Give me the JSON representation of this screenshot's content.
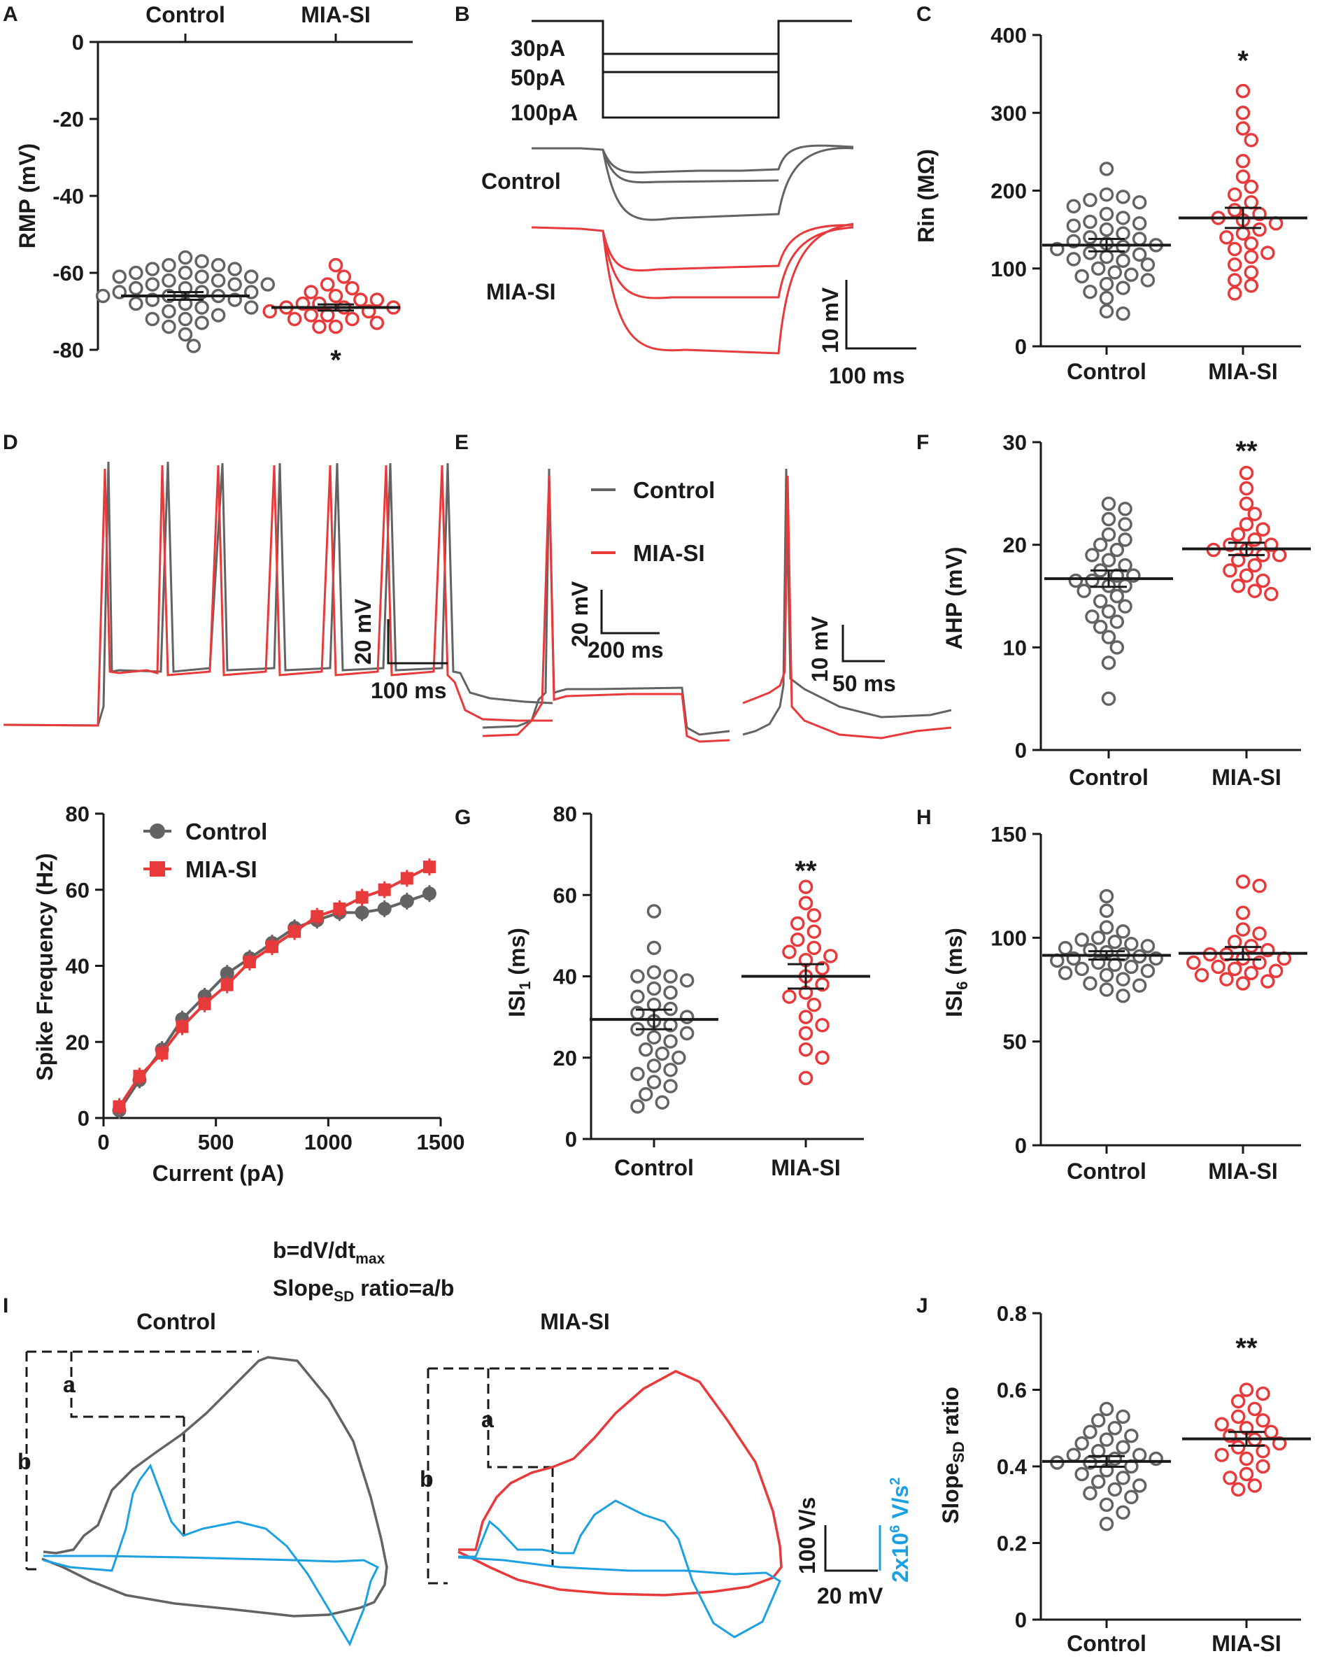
{
  "colors": {
    "control": "#636363",
    "mia": "#e8393b",
    "blue": "#1ba1e2",
    "black": "#1a1a1a"
  },
  "groups": {
    "control": "Control",
    "mia": "MIA-SI"
  },
  "panels": {
    "A": {
      "label": "A",
      "ylabel": "RMP (mV)",
      "ticks": [
        "0",
        "-20",
        "-40",
        "-60",
        "-80"
      ],
      "star": "*"
    },
    "B": {
      "label": "B",
      "steps": [
        "30pA",
        "50pA",
        "100pA"
      ],
      "trace1": "Control",
      "trace2": "MIA-SI",
      "scale_v": "10 mV",
      "scale_t": "100 ms"
    },
    "C": {
      "label": "C",
      "ylabel": "Rin (MΩ)",
      "ticks": [
        "400",
        "300",
        "200",
        "100",
        "0"
      ],
      "star": "*"
    },
    "D": {
      "label": "D",
      "scale_v": "20 mV",
      "scale_t": "100 ms"
    },
    "E": {
      "label": "E",
      "legend1": "Control",
      "legend2": "MIA-SI",
      "scale1_v": "20 mV",
      "scale1_t": "200 ms",
      "scale2_v": "10 mV",
      "scale2_t": "50 ms"
    },
    "F": {
      "label": "F",
      "ylabel": "AHP (mV)",
      "ticks": [
        "30",
        "20",
        "10",
        "0"
      ],
      "star": "**"
    },
    "FI": {
      "xlabel": "Current (pA)",
      "ylabel": "Spike Frequency (Hz)",
      "yticks": [
        "80",
        "60",
        "40",
        "20",
        "0"
      ],
      "xticks": [
        "0",
        "500",
        "1000",
        "1500"
      ],
      "legend1": "Control",
      "legend2": "MIA-SI"
    },
    "G": {
      "label": "G",
      "ylabel_main": "ISI",
      "ylabel_sub": "1",
      "ylabel_unit": " (ms)",
      "ticks": [
        "80",
        "60",
        "40",
        "20",
        "0"
      ],
      "star": "**"
    },
    "H": {
      "label": "H",
      "ylabel_main": "ISI",
      "ylabel_sub": "6",
      "ylabel_unit": " (ms)",
      "ticks": [
        "150",
        "100",
        "50",
        "0"
      ]
    },
    "I": {
      "label": "I",
      "eq1_main": "b=dV/dt",
      "eq1_sub": "max",
      "eq2_main": "Slope",
      "eq2_sub": "SD",
      "eq2_rest": " ratio=a/b",
      "title1": "Control",
      "title2": "MIA-SI",
      "mark_a": "a",
      "mark_b": "b",
      "scale_v": "100 V/s",
      "scale_t": "20 mV",
      "scale_blue": "2x10",
      "scale_blue_sup": "6",
      "scale_blue_unit": " V/s",
      "scale_blue_sup2": "2"
    },
    "J": {
      "label": "J",
      "ylabel_main": "Slope",
      "ylabel_sub": "SD",
      "ylabel_unit": " ratio",
      "ticks": [
        "0.8",
        "0.6",
        "0.4",
        "0.2",
        "0"
      ],
      "star": "**"
    }
  },
  "chart_data": [
    {
      "id": "A",
      "type": "scatter",
      "title": "",
      "ylabel": "RMP (mV)",
      "ylim": [
        -80,
        0
      ],
      "series": [
        {
          "name": "Control",
          "mean": -66,
          "sem": 1,
          "values": [
            -56,
            -57,
            -58,
            -58,
            -59,
            -59,
            -60,
            -60,
            -61,
            -61,
            -61,
            -62,
            -62,
            -63,
            -63,
            -63,
            -64,
            -64,
            -65,
            -65,
            -65,
            -66,
            -66,
            -66,
            -67,
            -67,
            -68,
            -68,
            -69,
            -69,
            -70,
            -71,
            -72,
            -72,
            -73,
            -74,
            -76,
            -79
          ]
        },
        {
          "name": "MIA-SI",
          "mean": -69,
          "sem": 0.8,
          "values": [
            -58,
            -61,
            -63,
            -64,
            -65,
            -66,
            -67,
            -67,
            -68,
            -68,
            -69,
            -69,
            -69,
            -70,
            -70,
            -71,
            -71,
            -72,
            -72,
            -73,
            -74,
            -74
          ]
        }
      ]
    },
    {
      "id": "C",
      "type": "scatter",
      "title": "",
      "ylabel": "Rin (MΩ)",
      "ylim": [
        0,
        400
      ],
      "series": [
        {
          "name": "Control",
          "mean": 130,
          "sem": 8,
          "values": [
            228,
            195,
            192,
            188,
            185,
            180,
            170,
            165,
            160,
            158,
            155,
            150,
            145,
            140,
            138,
            135,
            132,
            130,
            128,
            125,
            120,
            118,
            115,
            112,
            110,
            105,
            100,
            95,
            92,
            90,
            85,
            80,
            75,
            70,
            62,
            45,
            42
          ]
        },
        {
          "name": "MIA-SI",
          "mean": 165,
          "sem": 13,
          "values": [
            328,
            300,
            280,
            265,
            238,
            218,
            205,
            195,
            185,
            175,
            170,
            165,
            162,
            158,
            150,
            145,
            140,
            132,
            125,
            120,
            115,
            105,
            95,
            85,
            78,
            68
          ]
        }
      ]
    },
    {
      "id": "F",
      "type": "scatter",
      "title": "",
      "ylabel": "AHP (mV)",
      "ylim": [
        0,
        30
      ],
      "series": [
        {
          "name": "Control",
          "mean": 16.7,
          "sem": 0.8,
          "values": [
            24,
            23.5,
            22.5,
            22,
            21,
            20.5,
            20,
            19.5,
            19,
            18.5,
            18,
            17.5,
            17,
            17,
            16.5,
            16.5,
            16,
            16,
            15.5,
            15,
            14.5,
            14,
            13.5,
            13,
            12.5,
            12,
            11,
            10,
            8.5,
            5
          ]
        },
        {
          "name": "MIA-SI",
          "mean": 19.6,
          "sem": 0.6,
          "values": [
            27,
            25.5,
            24,
            23,
            22,
            21.5,
            21,
            20.5,
            20,
            20,
            19.5,
            19.5,
            19,
            19,
            18.5,
            18,
            17.5,
            17,
            16.5,
            16,
            15.5,
            15.2
          ]
        }
      ]
    },
    {
      "id": "FI",
      "type": "line",
      "title": "",
      "xlabel": "Current (pA)",
      "ylabel": "Spike Frequency (Hz)",
      "xlim": [
        0,
        1500
      ],
      "ylim": [
        0,
        80
      ],
      "x": [
        70,
        160,
        260,
        350,
        450,
        550,
        650,
        750,
        850,
        950,
        1050,
        1150,
        1250,
        1350,
        1450
      ],
      "series": [
        {
          "name": "Control",
          "values": [
            2,
            10,
            18,
            26,
            32,
            38,
            42,
            46,
            50,
            52,
            54,
            54,
            55,
            57,
            59
          ]
        },
        {
          "name": "MIA-SI",
          "values": [
            3,
            11,
            17,
            24,
            30,
            35,
            41,
            45,
            49,
            53,
            55,
            58,
            60,
            63,
            66
          ]
        }
      ]
    },
    {
      "id": "G",
      "type": "scatter",
      "title": "",
      "ylabel": "ISI1 (ms)",
      "ylim": [
        0,
        80
      ],
      "series": [
        {
          "name": "Control",
          "mean": 29.4,
          "sem": 2.4,
          "values": [
            56,
            47,
            41,
            40,
            40,
            39,
            37,
            36,
            35,
            33,
            32,
            31,
            30,
            29,
            28,
            27,
            26,
            25,
            24,
            22,
            21,
            20,
            18,
            17,
            16,
            14,
            13,
            11,
            9,
            8
          ]
        },
        {
          "name": "MIA-SI",
          "mean": 40,
          "sem": 3,
          "values": [
            62,
            58,
            55,
            53,
            51,
            49,
            47,
            46,
            45,
            44,
            42,
            40,
            38,
            36,
            35,
            33,
            30,
            28,
            26,
            22,
            20,
            15
          ]
        }
      ]
    },
    {
      "id": "H",
      "type": "scatter",
      "title": "",
      "ylabel": "ISI6 (ms)",
      "ylim": [
        0,
        150
      ],
      "series": [
        {
          "name": "Control",
          "mean": 91.5,
          "sem": 2,
          "values": [
            120,
            113,
            105,
            103,
            100,
            99,
            98,
            97,
            96,
            95,
            94,
            93,
            92,
            91,
            90,
            90,
            89,
            88,
            87,
            86,
            85,
            84,
            83,
            82,
            80,
            78,
            77,
            75,
            72
          ]
        },
        {
          "name": "MIA-SI",
          "mean": 92.5,
          "sem": 3,
          "values": [
            127,
            125,
            112,
            104,
            102,
            98,
            96,
            94,
            92,
            92,
            90,
            90,
            88,
            88,
            86,
            85,
            84,
            83,
            82,
            80,
            79,
            78
          ]
        }
      ]
    },
    {
      "id": "J",
      "type": "scatter",
      "title": "",
      "ylabel": "SlopeSD ratio",
      "ylim": [
        0,
        0.8
      ],
      "series": [
        {
          "name": "Control",
          "mean": 0.413,
          "sem": 0.014,
          "values": [
            0.55,
            0.53,
            0.52,
            0.5,
            0.49,
            0.48,
            0.47,
            0.46,
            0.45,
            0.44,
            0.43,
            0.43,
            0.42,
            0.42,
            0.41,
            0.41,
            0.4,
            0.39,
            0.38,
            0.37,
            0.36,
            0.35,
            0.34,
            0.33,
            0.32,
            0.3,
            0.28,
            0.25
          ]
        },
        {
          "name": "MIA-SI",
          "mean": 0.472,
          "sem": 0.018,
          "values": [
            0.6,
            0.59,
            0.57,
            0.55,
            0.53,
            0.52,
            0.51,
            0.5,
            0.49,
            0.48,
            0.47,
            0.46,
            0.45,
            0.44,
            0.43,
            0.42,
            0.4,
            0.38,
            0.37,
            0.35,
            0.34
          ]
        }
      ]
    }
  ]
}
